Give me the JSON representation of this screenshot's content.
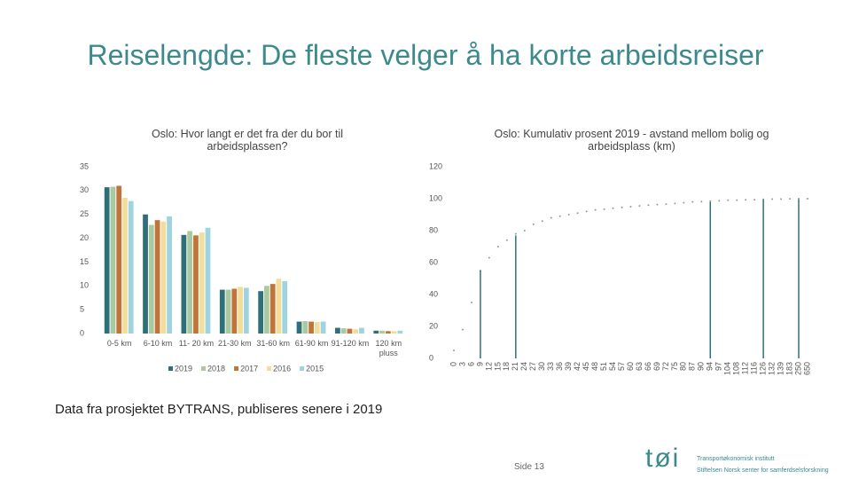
{
  "title": "Reiselengde: De fleste velger å ha korte arbeidsreiser",
  "footnote": "Data fra prosjektet BYTRANS, publiseres senere i 2019",
  "page": "Side 13",
  "logo": {
    "mark": "tøi",
    "line1": "Transportøkonomisk institutt",
    "line2": "Stiftelsen Norsk senter for samferdselsforskning"
  },
  "chart_data": [
    {
      "type": "bar",
      "title": "Oslo: Hvor langt er det fra der du bor til arbeidsplassen?",
      "categories": [
        "0-5 km",
        "6-10 km",
        "11- 20 km",
        "21-30 km",
        "31-60 km",
        "61-90 km",
        "91-120 km",
        "120 km pluss"
      ],
      "series": [
        {
          "name": "2019",
          "color": "#2f6f78",
          "values": [
            30.7,
            25.0,
            20.7,
            9.2,
            8.9,
            2.5,
            1.2,
            0.6
          ]
        },
        {
          "name": "2018",
          "color": "#a9c9a0",
          "values": [
            30.8,
            22.8,
            21.5,
            9.2,
            10.0,
            2.6,
            1.1,
            0.6
          ]
        },
        {
          "name": "2017",
          "color": "#c0733a",
          "values": [
            31.0,
            23.8,
            20.6,
            9.4,
            10.4,
            2.5,
            1.0,
            0.5
          ]
        },
        {
          "name": "2016",
          "color": "#f2de9a",
          "values": [
            28.5,
            23.5,
            21.2,
            9.8,
            11.5,
            2.4,
            0.9,
            0.5
          ]
        },
        {
          "name": "2015",
          "color": "#9fd3e0",
          "values": [
            27.8,
            24.6,
            22.2,
            9.6,
            11.0,
            2.5,
            1.2,
            0.6
          ]
        }
      ],
      "ylim": [
        0,
        35
      ],
      "yticks": [
        0,
        5,
        10,
        15,
        20,
        25,
        30,
        35
      ],
      "legend": "bottom"
    },
    {
      "type": "scatter",
      "title": "Oslo: Kumulativ prosent 2019 - avstand mellom bolig og arbeidsplass (km)",
      "categories": [
        "0",
        "3",
        "6",
        "9",
        "12",
        "15",
        "18",
        "21",
        "24",
        "27",
        "30",
        "33",
        "36",
        "39",
        "42",
        "45",
        "48",
        "51",
        "54",
        "57",
        "60",
        "63",
        "66",
        "69",
        "72",
        "75",
        "80",
        "87",
        "90",
        "94",
        "97",
        "104",
        "108",
        "112",
        "116",
        "126",
        "132",
        "139",
        "183",
        "250",
        "650"
      ],
      "series": [
        {
          "color": "#999999",
          "style": "dots",
          "values": [
            5,
            18,
            35,
            55,
            63,
            70,
            74,
            78,
            80,
            84,
            86,
            88,
            89,
            90,
            91,
            92,
            93,
            93.5,
            94,
            94.5,
            95,
            95.5,
            96,
            96.3,
            96.6,
            97,
            97.5,
            98,
            98.2,
            98.5,
            98.7,
            99,
            99.1,
            99.3,
            99.4,
            99.6,
            99.7,
            99.8,
            99.9,
            100,
            100
          ]
        },
        {
          "color": "#2f6f78",
          "style": "stems",
          "values": [
            null,
            null,
            null,
            55,
            null,
            null,
            null,
            77,
            null,
            null,
            null,
            null,
            null,
            null,
            null,
            null,
            null,
            null,
            null,
            null,
            null,
            null,
            null,
            null,
            null,
            null,
            null,
            null,
            null,
            98,
            null,
            null,
            null,
            null,
            null,
            99.4,
            null,
            null,
            null,
            99.6,
            null
          ]
        }
      ],
      "ylim": [
        0,
        120
      ],
      "yticks": [
        0,
        20,
        40,
        60,
        80,
        100,
        120
      ]
    }
  ]
}
